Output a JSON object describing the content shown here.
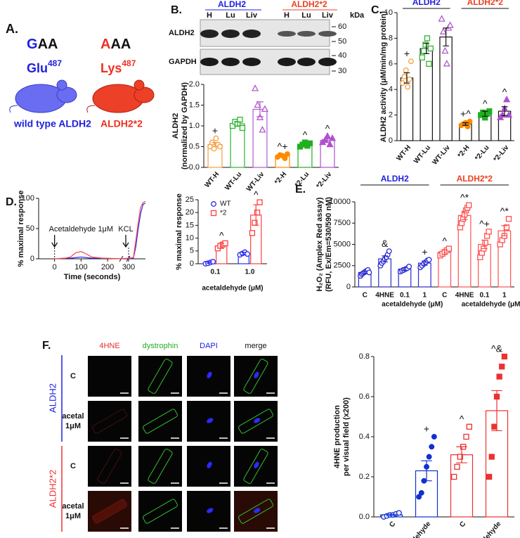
{
  "panel_a": {
    "label": "A.",
    "wt_codon": [
      "G",
      "AA"
    ],
    "mut_codon": [
      "A",
      "AA"
    ],
    "wt_residue": [
      "Glu",
      "487"
    ],
    "mut_residue": [
      "Lys",
      "487"
    ],
    "wt_name": "wild type ALDH2",
    "mut_name": "ALDH2*2"
  },
  "panel_b_blot": {
    "label": "B.",
    "groups": [
      "ALDH2",
      "ALDH2*2"
    ],
    "lanes": [
      "H",
      "Lu",
      "Liv",
      "H",
      "Lu",
      "Liv"
    ],
    "unit": "kDa",
    "markers": [
      60,
      50,
      40,
      30
    ],
    "rows": [
      "ALDH2",
      "GAPDH"
    ]
  },
  "panel_labels": {
    "c": "C.",
    "d": "D.",
    "e": "E.",
    "f": "F."
  },
  "panel_f_images": {
    "columns": [
      "4HNE",
      "dystrophin",
      "DAPI",
      "merge"
    ],
    "groups": [
      "ALDH2",
      "ALDH2*2"
    ],
    "rows": [
      [
        "C"
      ],
      [
        "acetal",
        "1μM"
      ],
      [
        "C"
      ],
      [
        "acetal",
        "1μM"
      ]
    ]
  },
  "chart_data": [
    {
      "type": "bar",
      "ylabel": [
        "ALDH2",
        "(normalized by GAPDH)"
      ],
      "categories": [
        "WT-H",
        "WT-Lu",
        "WT-Liv",
        "*2-H",
        "*2-Lu",
        "*2-Liv"
      ],
      "values": [
        0.55,
        1.05,
        1.4,
        0.28,
        0.55,
        0.65
      ],
      "errors": [
        0.05,
        0.05,
        0.18,
        0.02,
        0.02,
        0.04
      ],
      "points": [
        [
          0.5,
          0.6,
          0.45,
          0.7,
          0.55,
          0.5
        ],
        [
          1.0,
          1.1,
          1.05,
          1.15,
          0.95
        ],
        [
          1.9,
          1.5,
          1.2,
          0.9,
          1.4
        ],
        [
          0.25,
          0.3,
          0.28,
          0.22,
          0.32
        ],
        [
          0.5,
          0.55,
          0.6,
          0.52,
          0.58
        ],
        [
          0.6,
          0.65,
          0.75,
          0.55,
          0.7
        ]
      ],
      "colors": [
        "#f5a040",
        "#2fb52f",
        "#b05ad0",
        "#ff8a00",
        "#20b020",
        "#b050d0"
      ],
      "markers": [
        "circle",
        "square",
        "triangle",
        "circle",
        "square",
        "triangle"
      ],
      "filled": [
        false,
        false,
        false,
        true,
        true,
        true
      ],
      "annotations": [
        "+",
        null,
        null,
        "^+",
        "^",
        "^"
      ],
      "ylim": [
        0,
        2
      ],
      "yticks": [
        {
          "value": 0,
          "label": "0.0"
        },
        0.5,
        {
          "value": 1,
          "label": "1.0"
        },
        1.5,
        {
          "value": 2,
          "label": "2.0"
        }
      ]
    },
    {
      "type": "bar",
      "ylabel": [
        "ALDH2  activity (μM/min/mg protein)"
      ],
      "groups": [
        {
          "label": "ALDH2",
          "color": "#2020e0"
        },
        {
          "label": "ALDH2*2",
          "color": "#ee4020"
        }
      ],
      "categories": [
        "WT-H",
        "WT-Lu",
        "WT-Liv",
        "*2-H",
        "*2-Lu",
        "*2-Liv"
      ],
      "values": [
        4.9,
        7.2,
        8.1,
        1.3,
        2.1,
        2.3
      ],
      "errors": [
        0.4,
        0.4,
        0.7,
        0.1,
        0.2,
        0.35
      ],
      "points": [
        [
          4.5,
          5.0,
          5.5,
          4.2,
          4.8,
          6.2
        ],
        [
          6.5,
          7.0,
          7.5,
          8.0,
          6.0,
          7.2
        ],
        [
          9.5,
          8.5,
          7.0,
          6.0,
          8.8,
          9.0
        ],
        [
          1.2,
          1.3,
          1.4,
          1.1,
          1.5
        ],
        [
          2.0,
          2.2,
          1.8,
          2.1,
          2.3
        ],
        [
          1.8,
          2.0,
          2.5,
          3.2,
          2.0
        ]
      ],
      "colors": [
        "#f5a040",
        "#2fb52f",
        "#b05ad0",
        "#ff8a00",
        "#20b020",
        "#b050d0"
      ],
      "markers": [
        "circle",
        "square",
        "triangle",
        "circle",
        "square",
        "triangle"
      ],
      "filled": [
        false,
        false,
        false,
        true,
        true,
        true
      ],
      "annotations": [
        "+",
        null,
        null,
        "+^",
        "^",
        "^"
      ],
      "ylim": [
        0,
        10
      ],
      "yticks": [
        0,
        2,
        4,
        6,
        8,
        10
      ]
    },
    {
      "type": "line",
      "ylabel": [
        "% maximal response"
      ],
      "xlabel": "Time (seconds)",
      "annotations": [
        "Acetaldehyde 1μM",
        "KCL"
      ],
      "x": [
        0,
        40,
        60,
        80,
        100,
        120,
        140,
        180,
        250,
        300,
        320,
        330,
        340,
        350,
        360,
        370
      ],
      "series": [
        {
          "color": "#2a2af0",
          "values": [
            0,
            1,
            1,
            2,
            3,
            2,
            1,
            1,
            0,
            0,
            1,
            20,
            50,
            75,
            90,
            92
          ]
        },
        {
          "color": "#ff4040",
          "values": [
            0,
            1,
            3,
            10,
            12,
            8,
            3,
            1,
            0,
            1,
            2,
            30,
            60,
            85,
            93,
            95
          ]
        }
      ],
      "xlim": [
        -60,
        370
      ],
      "xticks": [
        0,
        100,
        200,
        300
      ],
      "ylim": [
        0,
        100
      ],
      "yticks": [
        0,
        50,
        100
      ]
    },
    {
      "type": "bar",
      "ylabel": [
        "% maximal response"
      ],
      "xlabel": [
        "acetaldehyde (μM)"
      ],
      "categories": [
        "0.1",
        "1.0"
      ],
      "legend": "upper left",
      "series": [
        {
          "name": "WT",
          "color": "#2a2af0",
          "marker": "circle",
          "values": [
            0.5,
            4
          ],
          "errors": [
            0.3,
            0.5
          ],
          "points": [
            [
              0,
              0.2,
              0.5,
              0.8
            ],
            [
              3.5,
              4,
              4.5,
              3.8
            ]
          ]
        },
        {
          "name": "*2",
          "color": "#ff4040",
          "marker": "square",
          "values": [
            7,
            19
          ],
          "errors": [
            1,
            4
          ],
          "points": [
            [
              6,
              7,
              7.5,
              8
            ],
            [
              12,
              16,
              20,
              24
            ]
          ],
          "annotations": [
            "^",
            "^"
          ]
        }
      ],
      "ylim": [
        0,
        25
      ],
      "yticks": [
        0,
        5,
        10,
        15,
        20,
        25
      ]
    },
    {
      "type": "bar",
      "ylabel": [
        "H₂O₂ (Amplex Red assay)",
        "(RFU, Ex/Em=530/590 nM)"
      ],
      "xlabel": [
        "acetaldehyde (μM)",
        "acetaldehyde (μM)"
      ],
      "groups": [
        {
          "label": "ALDH2",
          "color": "#2020e0"
        },
        {
          "label": "ALDH2*2",
          "color": "#ee4020"
        }
      ],
      "categories": [
        "C",
        "4HNE",
        "0.1",
        "1",
        "C",
        "4HNE",
        "0.1",
        "1"
      ],
      "values": [
        1700,
        3300,
        2100,
        2800,
        4100,
        8400,
        5000,
        6600
      ],
      "errors": [
        150,
        350,
        150,
        250,
        250,
        500,
        500,
        600
      ],
      "points": [
        [
          1300,
          1500,
          1600,
          1700,
          1800,
          1900,
          2000,
          1700
        ],
        [
          2500,
          2800,
          3000,
          3300,
          3500,
          3800,
          4200
        ],
        [
          1800,
          1900,
          2000,
          2100,
          2200,
          2400
        ],
        [
          2300,
          2500,
          2700,
          2900,
          3100,
          3200
        ],
        [
          3700,
          3900,
          4100,
          4300,
          4500
        ],
        [
          7000,
          7500,
          8000,
          8500,
          9000,
          9300,
          9600
        ],
        [
          3500,
          4000,
          4500,
          5200,
          6000,
          6500
        ],
        [
          5000,
          5500,
          6000,
          7000,
          8000
        ]
      ],
      "colors": [
        "#2a2ad0",
        "#2a2ad0",
        "#2a2ad0",
        "#2a2ad0",
        "#ff5050",
        "#ff5050",
        "#ff5050",
        "#ff5050"
      ],
      "markers": [
        "circle",
        "circle",
        "circle",
        "circle",
        "square",
        "square",
        "square",
        "square"
      ],
      "filled": [
        false,
        false,
        false,
        false,
        false,
        false,
        false,
        false
      ],
      "annotations": [
        null,
        "&",
        null,
        "+",
        "^",
        "^*",
        "^+",
        "^*"
      ],
      "ylim": [
        0,
        10000
      ],
      "yticks": [
        0,
        2500,
        5000,
        7500,
        10000
      ]
    },
    {
      "type": "bar",
      "ylabel": [
        "4HNE production",
        "per visual field (x200)"
      ],
      "categories": [
        "C",
        "acetaldehyde",
        "C",
        "acetaldehyde"
      ],
      "values": [
        0.01,
        0.23,
        0.31,
        0.53
      ],
      "errors": [
        0.003,
        0.05,
        0.04,
        0.1
      ],
      "points": [
        [
          0,
          0.005,
          0.01,
          0.01,
          0.015,
          0.02
        ],
        [
          0.1,
          0.12,
          0.18,
          0.25,
          0.3,
          0.35,
          0.4
        ],
        [
          0.2,
          0.25,
          0.3,
          0.35,
          0.4,
          0.45
        ],
        [
          0.2,
          0.3,
          0.45,
          0.6,
          0.7,
          0.75,
          0.8
        ]
      ],
      "colors": [
        "#1030d0",
        "#1030d0",
        "#ee3030",
        "#ee3030"
      ],
      "markers": [
        "circle",
        "circle",
        "square",
        "square"
      ],
      "filled": [
        false,
        true,
        false,
        true
      ],
      "annotations": [
        null,
        "+",
        "^",
        "^&"
      ],
      "ylim": [
        0,
        0.8
      ],
      "yticks": [
        {
          "value": 0,
          "label": "0.0"
        },
        0.2,
        0.4,
        0.6,
        0.8
      ]
    }
  ]
}
